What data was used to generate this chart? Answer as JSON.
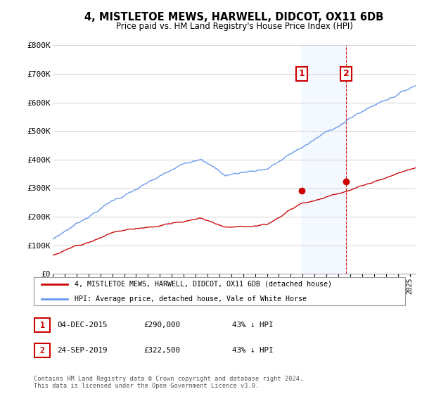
{
  "title": "4, MISTLETOE MEWS, HARWELL, DIDCOT, OX11 6DB",
  "subtitle": "Price paid vs. HM Land Registry's House Price Index (HPI)",
  "legend_line1": "4, MISTLETOE MEWS, HARWELL, DIDCOT, OX11 6DB (detached house)",
  "legend_line2": "HPI: Average price, detached house, Vale of White Horse",
  "footnote": "Contains HM Land Registry data © Crown copyright and database right 2024.\nThis data is licensed under the Open Government Licence v3.0.",
  "transaction1_label": "1",
  "transaction1_date": "04-DEC-2015",
  "transaction1_price": "£290,000",
  "transaction1_hpi": "43% ↓ HPI",
  "transaction2_label": "2",
  "transaction2_date": "24-SEP-2019",
  "transaction2_price": "£322,500",
  "transaction2_hpi": "43% ↓ HPI",
  "hpi_color": "#6495ED",
  "price_color": "#CC0000",
  "vline_color": "#CC0000",
  "highlight_color": "#ddeeff",
  "ylim": [
    0,
    800000
  ],
  "yticks": [
    0,
    100000,
    200000,
    300000,
    400000,
    500000,
    600000,
    700000,
    800000
  ],
  "ytick_labels": [
    "£0",
    "£100K",
    "£200K",
    "£300K",
    "£400K",
    "£500K",
    "£600K",
    "£700K",
    "£800K"
  ]
}
